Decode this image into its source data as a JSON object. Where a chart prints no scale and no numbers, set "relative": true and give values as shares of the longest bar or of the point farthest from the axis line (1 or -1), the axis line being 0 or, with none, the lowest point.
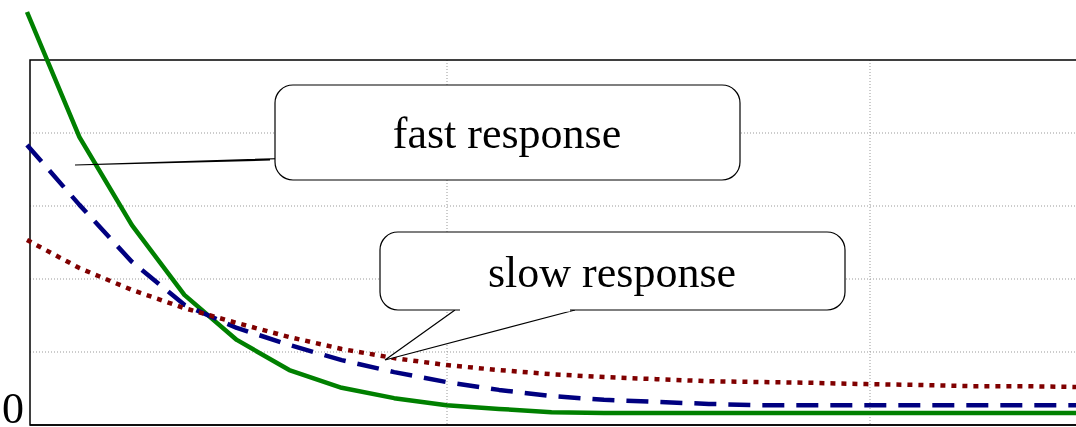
{
  "chart_data": {
    "type": "line",
    "relative": true,
    "grid": true,
    "categories": [
      null,
      null,
      null,
      null,
      null,
      null,
      null,
      null,
      null,
      null,
      null,
      null,
      null,
      null,
      null,
      null,
      null,
      null,
      null,
      null,
      null
    ],
    "series": [
      {
        "color": "#008000",
        "line_style": "solid",
        "values": [
          1,
          0.697,
          0.484,
          0.315,
          0.206,
          0.133,
          0.09,
          0.065,
          0.048,
          0.039,
          0.031,
          0.029,
          0.029,
          0.029,
          0.029,
          0.029,
          0.029,
          0.029,
          0.029,
          0.029,
          0.029
        ]
      },
      {
        "color": "#000080",
        "line_style": "dashed",
        "values": [
          0.678,
          0.533,
          0.395,
          0.291,
          0.235,
          0.194,
          0.157,
          0.128,
          0.104,
          0.085,
          0.07,
          0.061,
          0.056,
          0.051,
          0.048,
          0.048,
          0.048,
          0.048,
          0.048,
          0.048,
          0.048
        ]
      },
      {
        "color": "#800000",
        "line_style": "dotted",
        "values": [
          0.448,
          0.38,
          0.327,
          0.283,
          0.247,
          0.213,
          0.184,
          0.162,
          0.145,
          0.133,
          0.123,
          0.116,
          0.111,
          0.106,
          0.104,
          0.102,
          0.099,
          0.097,
          0.094,
          0.094,
          0.092
        ]
      }
    ],
    "annotations": [
      "fast response",
      "slow response",
      "0"
    ]
  }
}
